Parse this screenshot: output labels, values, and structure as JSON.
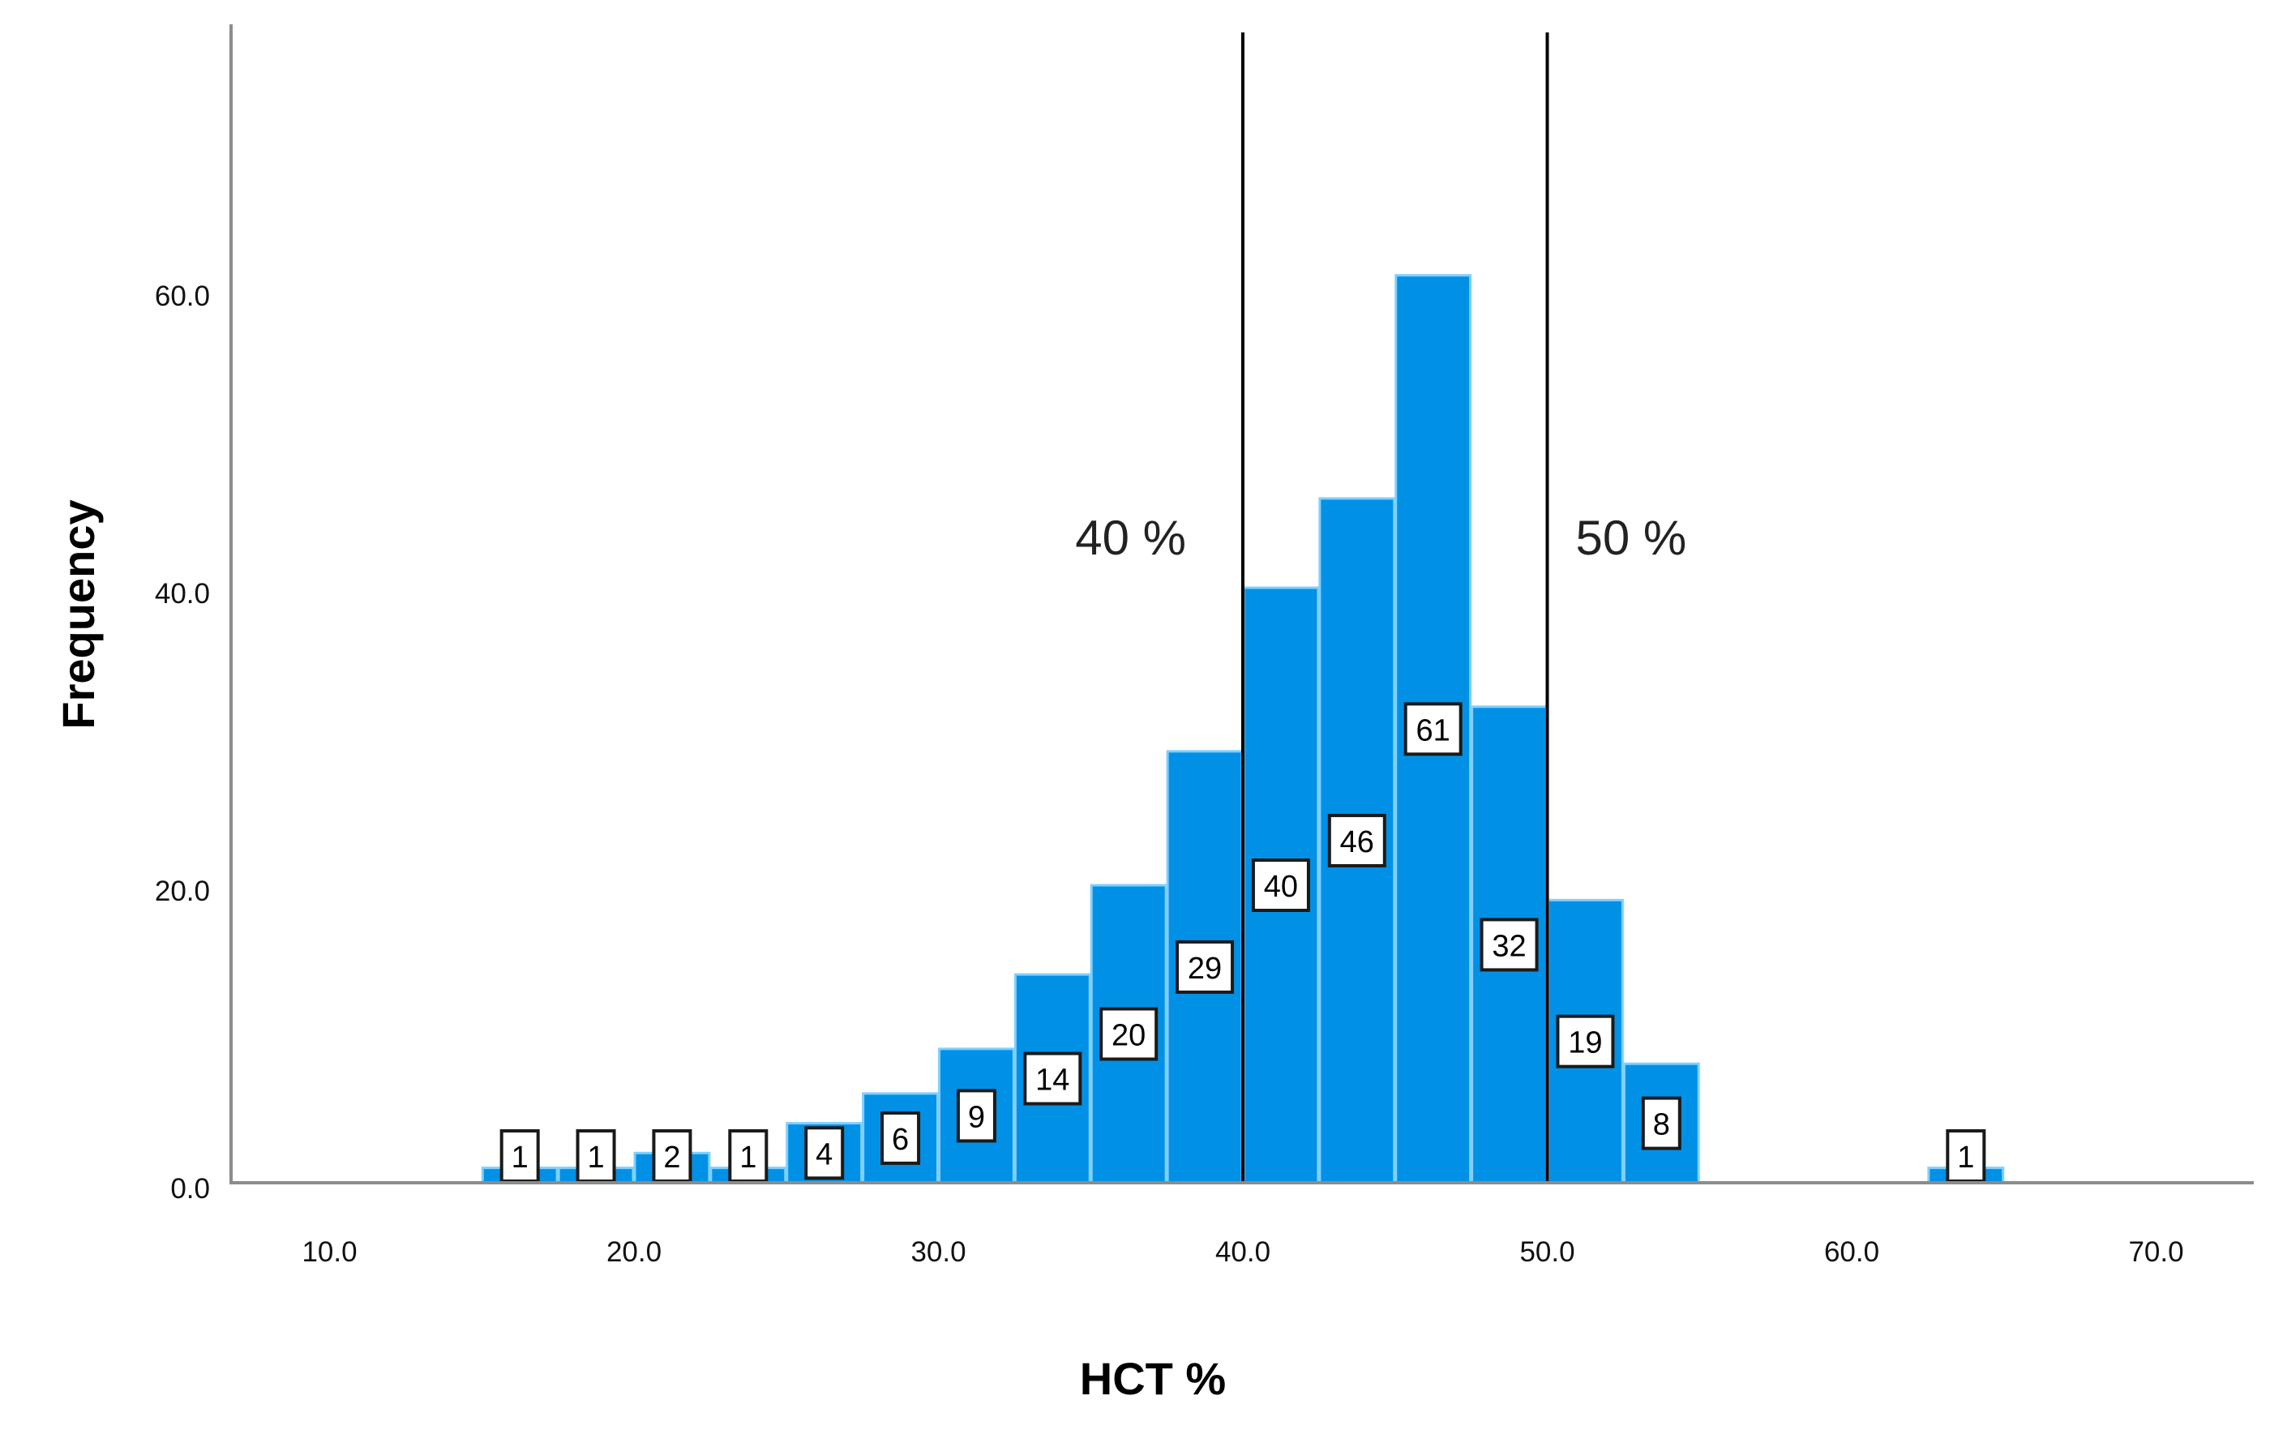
{
  "chart_data": {
    "type": "bar",
    "subtype": "histogram",
    "title": "",
    "xlabel": "HCT %",
    "ylabel": "Frequency",
    "xlim": [
      7.0,
      73.0
    ],
    "ylim": [
      0,
      78
    ],
    "x_ticks": [
      10.0,
      20.0,
      30.0,
      40.0,
      50.0,
      60.0,
      70.0
    ],
    "x_tick_labels": [
      "10.0",
      "20.0",
      "30.0",
      "40.0",
      "50.0",
      "60.0",
      "70.0"
    ],
    "y_ticks": [
      0.0,
      20.0,
      40.0,
      60.0
    ],
    "y_tick_labels": [
      "0.0",
      "20.0",
      "40.0",
      "60.0"
    ],
    "bin_width": 2.5,
    "bins": [
      {
        "start": 15.0,
        "end": 17.5,
        "count": 1
      },
      {
        "start": 17.5,
        "end": 20.0,
        "count": 1
      },
      {
        "start": 20.0,
        "end": 22.5,
        "count": 2
      },
      {
        "start": 22.5,
        "end": 25.0,
        "count": 1
      },
      {
        "start": 25.0,
        "end": 27.5,
        "count": 4
      },
      {
        "start": 27.5,
        "end": 30.0,
        "count": 6
      },
      {
        "start": 30.0,
        "end": 32.5,
        "count": 9
      },
      {
        "start": 32.5,
        "end": 35.0,
        "count": 14
      },
      {
        "start": 35.0,
        "end": 37.5,
        "count": 20
      },
      {
        "start": 37.5,
        "end": 40.0,
        "count": 29
      },
      {
        "start": 40.0,
        "end": 42.5,
        "count": 40
      },
      {
        "start": 42.5,
        "end": 45.0,
        "count": 46
      },
      {
        "start": 45.0,
        "end": 47.5,
        "count": 61
      },
      {
        "start": 47.5,
        "end": 50.0,
        "count": 32
      },
      {
        "start": 50.0,
        "end": 52.5,
        "count": 19
      },
      {
        "start": 52.5,
        "end": 55.0,
        "count": 8
      },
      {
        "start": 62.5,
        "end": 65.0,
        "count": 1
      }
    ],
    "categories": [
      "15.0-17.5",
      "17.5-20.0",
      "20.0-22.5",
      "22.5-25.0",
      "25.0-27.5",
      "27.5-30.0",
      "30.0-32.5",
      "32.5-35.0",
      "35.0-37.5",
      "37.5-40.0",
      "40.0-42.5",
      "42.5-45.0",
      "45.0-47.5",
      "47.5-50.0",
      "50.0-52.5",
      "52.5-55.0",
      "62.5-65.0"
    ],
    "values": [
      1,
      1,
      2,
      1,
      4,
      6,
      9,
      14,
      20,
      29,
      40,
      46,
      61,
      32,
      19,
      8,
      1
    ],
    "data_labels_shown": true,
    "reference_lines": [
      {
        "x": 40.0,
        "label": "40 %",
        "label_side": "left",
        "color": "#000000"
      },
      {
        "x": 50.0,
        "label": "50 %",
        "label_side": "right",
        "color": "#000000"
      }
    ],
    "grid": false,
    "legend": null,
    "colors": {
      "bar_fill": "#0091E6",
      "bar_edge": "#7FD0FF",
      "axis": "#8C8C8C",
      "reference_line": "#000000",
      "label_box_fill": "#FFFFFF",
      "label_box_border": "#1A1A1A"
    }
  }
}
